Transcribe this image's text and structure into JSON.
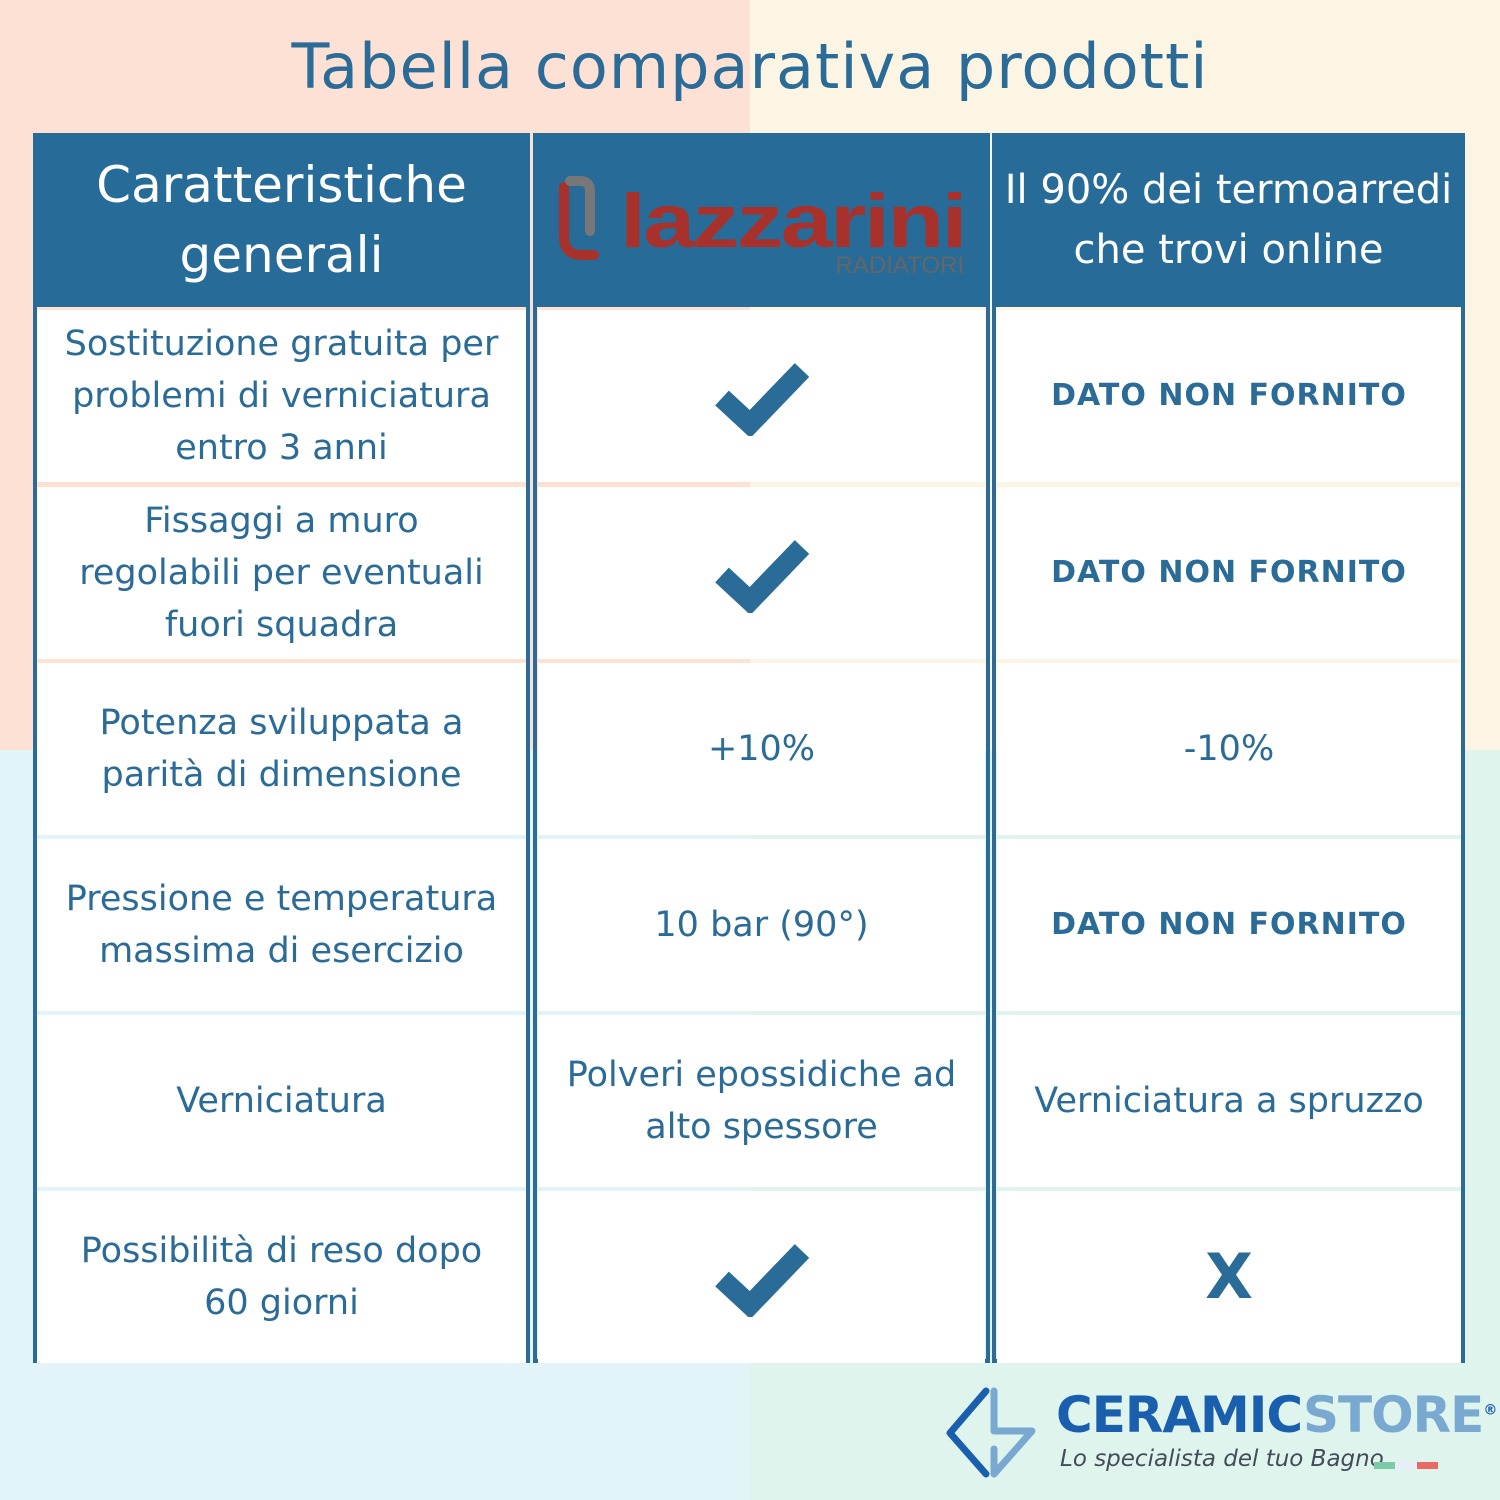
{
  "title": "Tabella comparativa prodotti",
  "header": {
    "col1": "Caratteristiche generali",
    "col2_logo": {
      "brand": "lazzarini",
      "sub": "RADIATORI"
    },
    "col3": "Il 90% dei termoarredi che trovi online"
  },
  "rows": [
    {
      "feature": "Sostituzione gratuita per problemi di verniciatura entro 3 anni",
      "lazzarini": "check-icon",
      "others": "DATO NON FORNITO"
    },
    {
      "feature": "Fissaggi a muro regolabili per eventuali fuori squadra",
      "lazzarini": "check-icon",
      "others": "DATO NON FORNITO"
    },
    {
      "feature": "Potenza sviluppata a parità di dimensione",
      "lazzarini": "+10%",
      "others": "-10%"
    },
    {
      "feature": "Pressione e temperatura massima di esercizio",
      "lazzarini": "10 bar (90°)",
      "others": "DATO NON FORNITO"
    },
    {
      "feature": "Verniciatura",
      "lazzarini": "Polveri epossidiche ad alto spessore",
      "others": "Verniciatura a spruzzo"
    },
    {
      "feature": "Possibilità di reso dopo 60 giorni",
      "lazzarini": "check-icon",
      "others": "X"
    }
  ],
  "footer_logo": {
    "name_a": "CERAMIC",
    "name_b": "STORE",
    "reg": "®",
    "tagline": "Lo specialista del tuo Bagno"
  },
  "colors": {
    "header": "#276b98",
    "text": "#2a6b97",
    "lazzarini_red": "#a8322b"
  }
}
